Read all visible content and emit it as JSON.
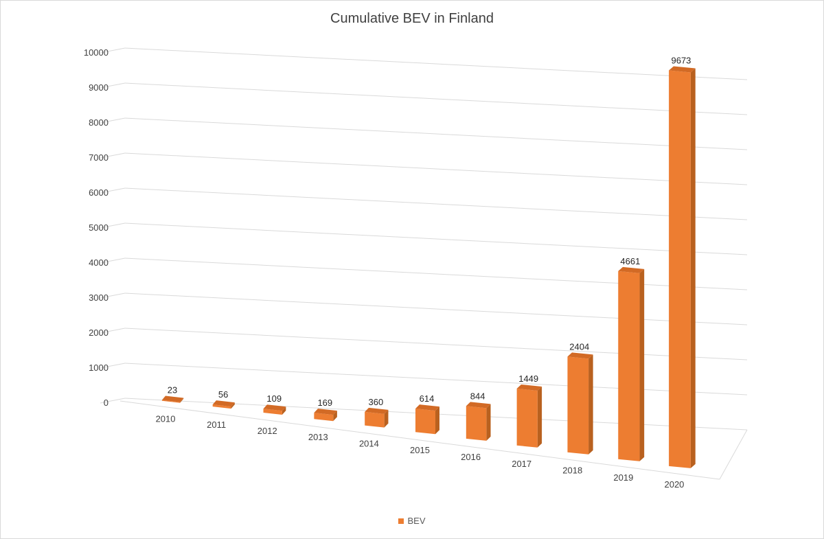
{
  "colors": {
    "bar_front": "#ED7D31",
    "bar_side": "#B9611F",
    "bar_top": "#D26A25",
    "grid": "#d9d9d9",
    "text": "#404040"
  },
  "chart_data": {
    "type": "bar",
    "title": "Cumulative BEV in Finland",
    "xlabel": "",
    "ylabel": "",
    "categories": [
      "2010",
      "2011",
      "2012",
      "2013",
      "2014",
      "2015",
      "2016",
      "2017",
      "2018",
      "2019",
      "2020"
    ],
    "series": [
      {
        "name": "BEV",
        "values": [
          23,
          56,
          109,
          169,
          360,
          614,
          844,
          1449,
          2404,
          4661,
          9673
        ]
      }
    ],
    "data_labels": [
      "23",
      "56",
      "109",
      "169",
      "360",
      "614",
      "844",
      "1449",
      "2404",
      "4661",
      "9673"
    ],
    "ylim": [
      0,
      10000
    ],
    "yticks": [
      "0",
      "1000",
      "2000",
      "3000",
      "4000",
      "5000",
      "6000",
      "7000",
      "8000",
      "9000",
      "10000"
    ],
    "grid": true,
    "legend_position": "bottom",
    "style": "3d-perspective-column"
  }
}
